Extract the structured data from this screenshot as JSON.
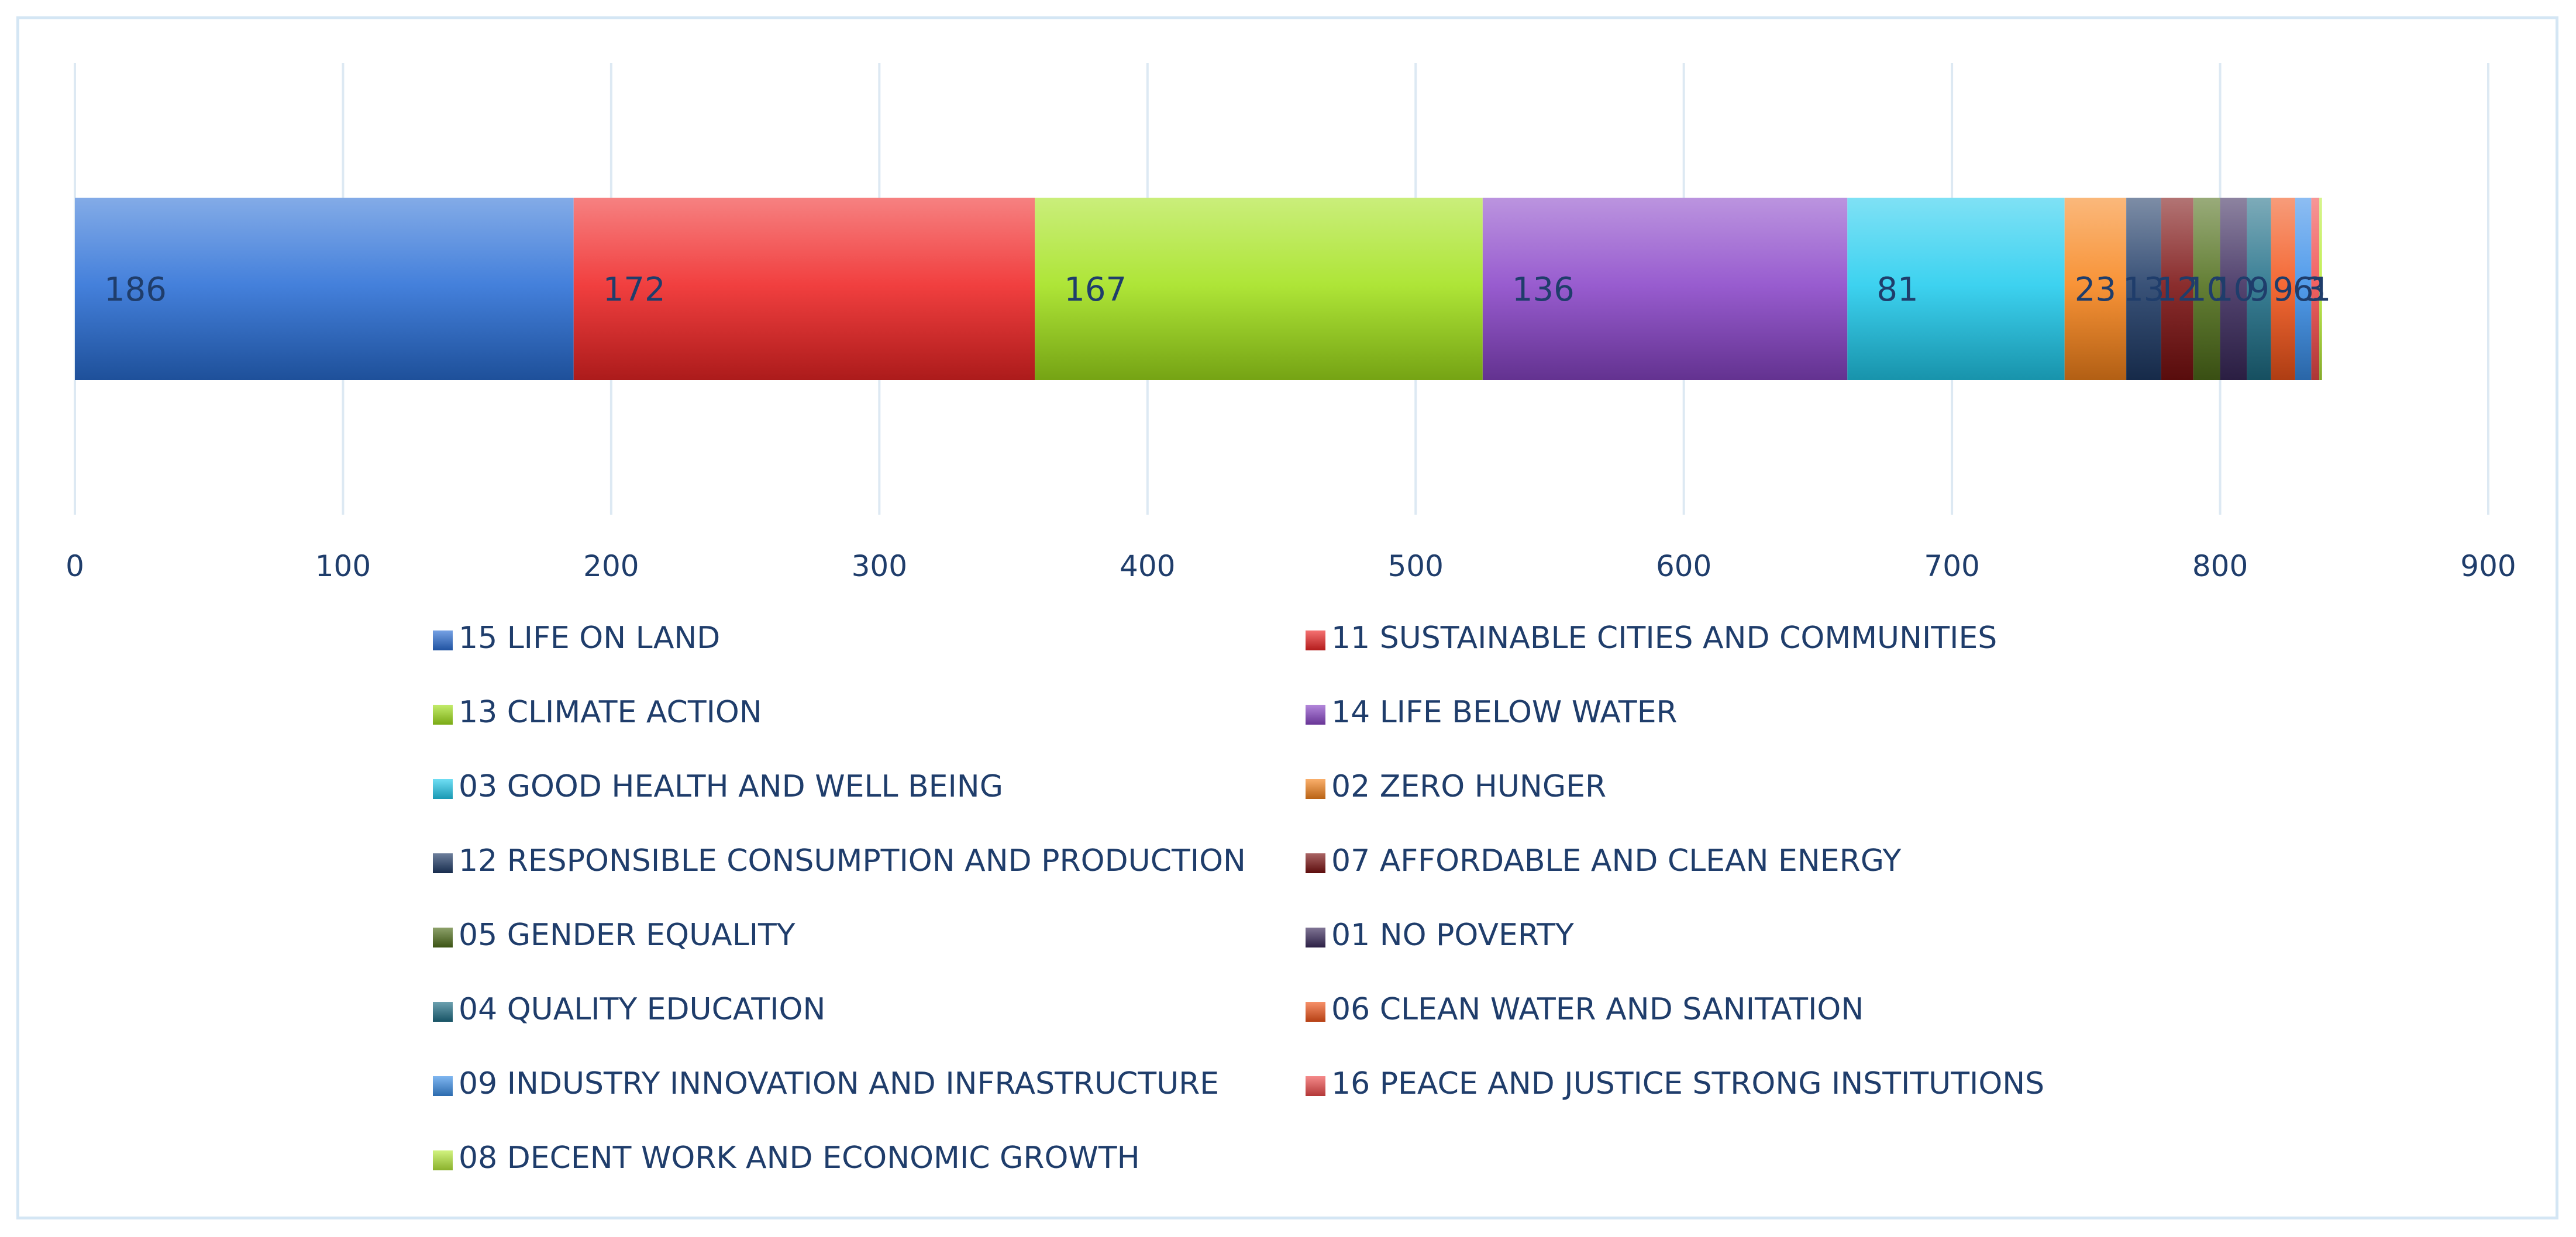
{
  "chart_data": {
    "type": "bar",
    "orientation": "horizontal",
    "stacked": true,
    "categories": [
      ""
    ],
    "series": [
      {
        "name": "15 LIFE ON LAND",
        "values": [
          186
        ],
        "color": "#2a6fd6"
      },
      {
        "name": "11 SUSTAINABLE CITIES AND COMMUNITIES",
        "values": [
          172
        ],
        "color": "#ef2525"
      },
      {
        "name": "13 CLIMATE ACTION",
        "values": [
          167
        ],
        "color": "#a3e21c"
      },
      {
        "name": "14 LIFE BELOW WATER",
        "values": [
          136
        ],
        "color": "#8a46c8"
      },
      {
        "name": "03 GOOD HEALTH AND WELL BEING",
        "values": [
          81
        ],
        "color": "#22ccee"
      },
      {
        "name": "02 ZERO HUNGER",
        "values": [
          23
        ],
        "color": "#f7841c"
      },
      {
        "name": "12 RESPONSIBLE CONSUMPTION AND PRODUCTION",
        "values": [
          13
        ],
        "color": "#1e3a66"
      },
      {
        "name": "07 AFFORDABLE AND CLEAN ENERGY",
        "values": [
          12
        ],
        "color": "#7a1010"
      },
      {
        "name": "05 GENDER EQUALITY",
        "values": [
          10
        ],
        "color": "#4f6e1a"
      },
      {
        "name": "01 NO POVERTY",
        "values": [
          10
        ],
        "color": "#3b2a5c"
      },
      {
        "name": "04 QUALITY EDUCATION",
        "values": [
          9
        ],
        "color": "#1f6e86"
      },
      {
        "name": "06 CLEAN WATER AND SANITATION",
        "values": [
          9
        ],
        "color": "#f2551a"
      },
      {
        "name": "09 INDUSTRY INNOVATION AND INFRASTRUCTURE",
        "values": [
          6
        ],
        "color": "#3a8ee8"
      },
      {
        "name": "16 PEACE AND JUSTICE STRONG INSTITUTIONS",
        "values": [
          3
        ],
        "color": "#ef4b4b"
      },
      {
        "name": "08 DECENT WORK AND ECONOMIC GROWTH",
        "values": [
          1
        ],
        "color": "#b8ec3a"
      }
    ],
    "data_labels": [
      "186",
      "172",
      "167",
      "136",
      "81",
      "23",
      "13",
      "12",
      "10",
      "10",
      "9",
      "9",
      "6",
      "3",
      "1"
    ],
    "xlim": [
      0,
      900
    ],
    "xticks": [
      "0",
      "100",
      "200",
      "300",
      "400",
      "500",
      "600",
      "700",
      "800",
      "900"
    ],
    "grid": true,
    "legend_position": "bottom",
    "title": "",
    "xlabel": "",
    "ylabel": ""
  }
}
